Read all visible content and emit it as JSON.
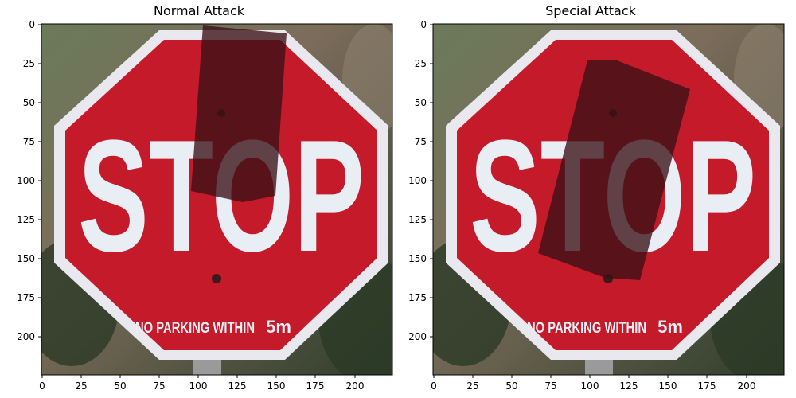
{
  "figure": {
    "panels": [
      {
        "title": "Normal Attack",
        "sign_text": "STOP",
        "sign_subtext": "NO PARKING WITHIN",
        "sign_distance": "5m",
        "x_ticks": [
          "0",
          "25",
          "50",
          "75",
          "100",
          "125",
          "150",
          "175",
          "200"
        ],
        "y_ticks": [
          "0",
          "25",
          "50",
          "75",
          "100",
          "125",
          "150",
          "175",
          "200"
        ]
      },
      {
        "title": "Special Attack",
        "sign_text": "STOP",
        "sign_subtext": "NO PARKING WITHIN",
        "sign_distance": "5m",
        "x_ticks": [
          "0",
          "25",
          "50",
          "75",
          "100",
          "125",
          "150",
          "175",
          "200"
        ],
        "y_ticks": [
          "0",
          "25",
          "50",
          "75",
          "100",
          "125",
          "150",
          "175",
          "200"
        ]
      }
    ],
    "colors": {
      "sign_red": "#c41a2a",
      "sign_border": "#e8e8ee",
      "letters": "#e9edf4",
      "patch": "#3a1116",
      "background_dark": "#3c4a3a",
      "background_mid": "#7c6d5a"
    }
  }
}
